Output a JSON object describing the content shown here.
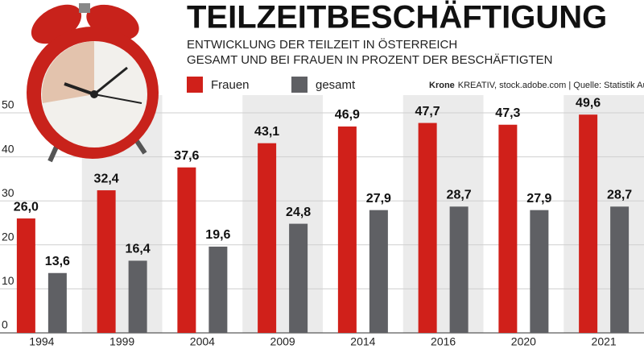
{
  "chart_data": {
    "type": "bar",
    "title": "TEILZEITBESCHÄFTIGUNG",
    "subtitle": [
      "ENTWICKLUNG DER TEILZEIT IN ÖSTERREICH",
      "GESAMT UND BEI FRAUEN IN PROZENT DER BESCHÄFTIGTEN"
    ],
    "source": {
      "brand": "Krone",
      "text": "KREATIV, stock.adobe.com | Quelle: Statistik Austria"
    },
    "categories": [
      "1994",
      "1999",
      "2004",
      "2009",
      "2014",
      "2016",
      "2020",
      "2021"
    ],
    "series": [
      {
        "name": "Frauen",
        "color": "#d0201a",
        "values": [
          26.0,
          32.4,
          37.6,
          43.1,
          46.9,
          47.7,
          47.3,
          49.6
        ],
        "value_labels": [
          "26,0",
          "32,4",
          "37,6",
          "43,1",
          "46,9",
          "47,7",
          "47,3",
          "49,6"
        ]
      },
      {
        "name": "gesamt",
        "color": "#5f6064",
        "values": [
          13.6,
          16.4,
          19.6,
          24.8,
          27.9,
          28.7,
          27.9,
          28.7
        ],
        "value_labels": [
          "13,6",
          "16,4",
          "19,6",
          "24,8",
          "27,9",
          "28,7",
          "27,9",
          "28,7"
        ]
      }
    ],
    "ylim": [
      0,
      50
    ],
    "yticks": [
      0,
      10,
      20,
      30,
      40,
      50
    ],
    "grid": true
  }
}
